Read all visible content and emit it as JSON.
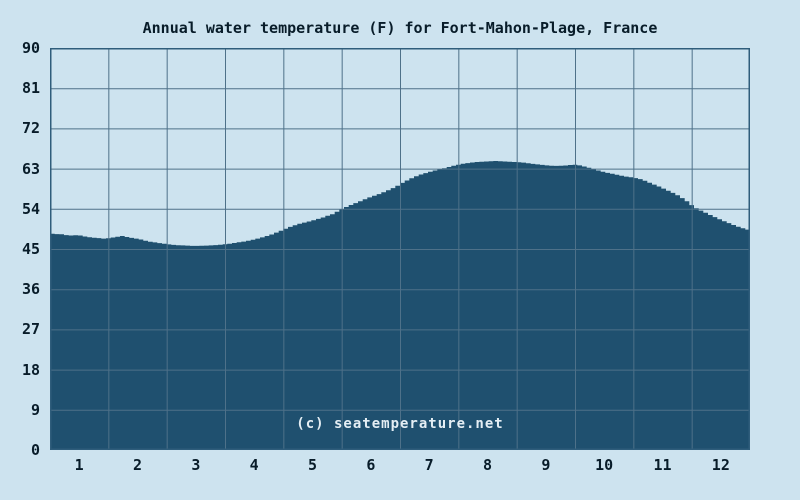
{
  "chart_data": {
    "type": "area",
    "title": "Annual water temperature (F) for Fort-Mahon-Plage, France",
    "watermark": "(c) seatemperature.net",
    "xlabel": "",
    "ylabel": "",
    "xlim": [
      0,
      12
    ],
    "ylim": [
      0,
      90
    ],
    "grid": true,
    "x_tick_labels": [
      "1",
      "2",
      "3",
      "4",
      "5",
      "6",
      "7",
      "8",
      "9",
      "10",
      "11",
      "12"
    ],
    "y_ticks": [
      0,
      9,
      18,
      27,
      36,
      45,
      54,
      63,
      72,
      81,
      90
    ],
    "series_name": "water temperature (F)",
    "monthly_average_f": {
      "1": 47.8,
      "2": 47.0,
      "3": 45.9,
      "4": 47.6,
      "5": 51.5,
      "6": 57.0,
      "7": 62.3,
      "8": 64.4,
      "9": 63.9,
      "10": 62.2,
      "11": 57.9,
      "12": 51.3
    },
    "points": [
      [
        0.0,
        48.4
      ],
      [
        0.15,
        48.3
      ],
      [
        0.3,
        48.0
      ],
      [
        0.45,
        48.1
      ],
      [
        0.6,
        47.7
      ],
      [
        0.75,
        47.5
      ],
      [
        0.9,
        47.3
      ],
      [
        1.05,
        47.6
      ],
      [
        1.2,
        47.9
      ],
      [
        1.35,
        47.5
      ],
      [
        1.5,
        47.2
      ],
      [
        1.65,
        46.7
      ],
      [
        1.8,
        46.4
      ],
      [
        1.95,
        46.1
      ],
      [
        2.1,
        45.9
      ],
      [
        2.25,
        45.8
      ],
      [
        2.4,
        45.7
      ],
      [
        2.55,
        45.7
      ],
      [
        2.7,
        45.8
      ],
      [
        2.85,
        45.9
      ],
      [
        3.0,
        46.1
      ],
      [
        3.15,
        46.4
      ],
      [
        3.3,
        46.7
      ],
      [
        3.45,
        47.1
      ],
      [
        3.6,
        47.6
      ],
      [
        3.75,
        48.2
      ],
      [
        3.9,
        49.0
      ],
      [
        4.05,
        49.8
      ],
      [
        4.2,
        50.5
      ],
      [
        4.35,
        51.0
      ],
      [
        4.5,
        51.5
      ],
      [
        4.65,
        52.1
      ],
      [
        4.8,
        52.8
      ],
      [
        5.0,
        54.2
      ],
      [
        5.15,
        55.0
      ],
      [
        5.3,
        55.8
      ],
      [
        5.45,
        56.6
      ],
      [
        5.6,
        57.3
      ],
      [
        5.75,
        58.1
      ],
      [
        5.9,
        59.0
      ],
      [
        6.0,
        59.8
      ],
      [
        6.15,
        60.8
      ],
      [
        6.3,
        61.6
      ],
      [
        6.45,
        62.2
      ],
      [
        6.6,
        62.7
      ],
      [
        6.75,
        63.2
      ],
      [
        6.9,
        63.7
      ],
      [
        7.0,
        64.0
      ],
      [
        7.15,
        64.3
      ],
      [
        7.3,
        64.5
      ],
      [
        7.45,
        64.6
      ],
      [
        7.6,
        64.7
      ],
      [
        7.75,
        64.6
      ],
      [
        7.9,
        64.5
      ],
      [
        8.05,
        64.4
      ],
      [
        8.2,
        64.1
      ],
      [
        8.35,
        63.9
      ],
      [
        8.5,
        63.7
      ],
      [
        8.65,
        63.6
      ],
      [
        8.8,
        63.7
      ],
      [
        8.95,
        63.9
      ],
      [
        9.05,
        63.7
      ],
      [
        9.2,
        63.2
      ],
      [
        9.35,
        62.6
      ],
      [
        9.5,
        62.1
      ],
      [
        9.65,
        61.7
      ],
      [
        9.8,
        61.3
      ],
      [
        9.95,
        61.0
      ],
      [
        10.1,
        60.6
      ],
      [
        10.25,
        59.8
      ],
      [
        10.4,
        59.0
      ],
      [
        10.55,
        58.1
      ],
      [
        10.7,
        57.2
      ],
      [
        10.85,
        56.0
      ],
      [
        11.0,
        54.4
      ],
      [
        11.15,
        53.4
      ],
      [
        11.3,
        52.5
      ],
      [
        11.45,
        51.6
      ],
      [
        11.6,
        50.8
      ],
      [
        11.75,
        50.0
      ],
      [
        11.9,
        49.4
      ],
      [
        12.0,
        49.1
      ]
    ]
  },
  "colors": {
    "background": "#cde3ef",
    "area_fill": "#1f506f",
    "gridline": "#4e7189",
    "frame": "#2f5d7b",
    "text": "#081c29",
    "watermark": "#e4eef4"
  }
}
